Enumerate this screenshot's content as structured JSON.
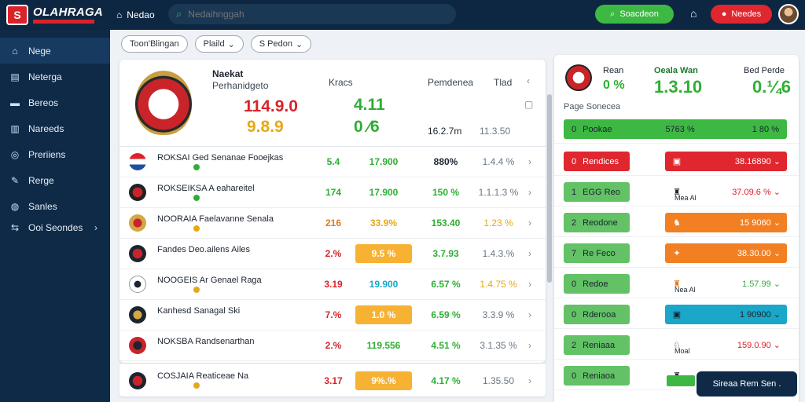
{
  "brand": {
    "name": "OLAHRAGA",
    "badge": "S"
  },
  "topnav": {
    "home_label": "Nedao"
  },
  "search": {
    "placeholder": "Nedaihnggah"
  },
  "actions": {
    "green_label": "Soacdeon",
    "red_label": "Needes"
  },
  "sidebar": {
    "items": [
      {
        "icon": "⌂",
        "label": "Nege"
      },
      {
        "icon": "▤",
        "label": "Neterga"
      },
      {
        "icon": "▬",
        "label": "Bereos"
      },
      {
        "icon": "▥",
        "label": "Nareeds"
      },
      {
        "icon": "◎",
        "label": "Preriiens"
      },
      {
        "icon": "✎",
        "label": "Rerge"
      },
      {
        "icon": "◍",
        "label": "Sanles"
      },
      {
        "icon": "⇆",
        "label": "Ooi Seondes"
      }
    ]
  },
  "filters": [
    "Toon'Blingan",
    "Plaild",
    "S Pedon"
  ],
  "hero": {
    "title": "Naekat",
    "subtitle": "Perhanidgeto",
    "score_red": "114.9.0",
    "score_yellow": "9.8.9",
    "col1_header": "Kracs",
    "col1_big": "4.11",
    "col1_small": "0 ⁄6",
    "col2_header": "Pemdenea",
    "col2_value": "16.2.7m",
    "col3_header": "Tlad",
    "col3_value": "11.3.50",
    "icon_chevron": "‹",
    "icon_square": "▢"
  },
  "rows": [
    {
      "name": "ROKSAI Ged Senanae Fooejkas",
      "c1": "5.4",
      "c1_color": "#2fae35",
      "c2": "17.900",
      "c2_bg": "transparent",
      "c2_color": "#2fae35",
      "c3": "880%",
      "c3_color": "#1c2430",
      "c4": "1.4.4 %"
    },
    {
      "name": "ROKSEIKSA A eahareitel",
      "c1": "174",
      "c1_color": "#2fae35",
      "c2": "17.900",
      "c2_bg": "transparent",
      "c2_color": "#2fae35",
      "c3": "150 %",
      "c3_color": "#2fae35",
      "c4": "1.1.1.3 %"
    },
    {
      "name": "NOORAIA Faelavanne Senala",
      "c1": "216",
      "c1_color": "#e07a1a",
      "c2": "33.9%",
      "c2_bg": "transparent",
      "c2_color": "#e6a817",
      "c3": "153.40",
      "c3_color": "#2fae35",
      "c4": "1.23 %"
    },
    {
      "name": "Fandes Deo.ailens Ailes",
      "c1": "2.%",
      "c1_color": "#d8232a",
      "c2": "9.5 %",
      "c2_bg": "#f7b233",
      "c2_color": "#fff",
      "c3": "3.7.93",
      "c3_color": "#2fae35",
      "c4": "1.4.3.%"
    },
    {
      "name": "NOOGEIS Ar Genael Raga",
      "c1": "3.19",
      "c1_color": "#d8232a",
      "c2": "19.900",
      "c2_bg": "transparent",
      "c2_color": "#1aa7c9",
      "c3": "6.57 %",
      "c3_color": "#2fae35",
      "c4": "1.4.75 %"
    },
    {
      "name": "Kanhesd Sanagal Ski",
      "c1": "7.%",
      "c1_color": "#d8232a",
      "c2": "1.0 %",
      "c2_bg": "#f7b233",
      "c2_color": "#fff",
      "c3": "6.59 %",
      "c3_color": "#2fae35",
      "c4": "3.3.9 %"
    },
    {
      "name": "NOKSBA Randsenarthan",
      "c1": "2.%",
      "c1_color": "#d8232a",
      "c2": "119.556",
      "c2_bg": "transparent",
      "c2_color": "#2fae35",
      "c3": "4.51 %",
      "c3_color": "#2fae35",
      "c4": "3.1.35 %"
    }
  ],
  "extra_row": {
    "name": "COSJAIA Reaticeae Na",
    "c1": "3.17",
    "c2": "9%.%",
    "c3": "4.17 %",
    "c4": "1.35.50"
  },
  "panel": {
    "h1": "Rean",
    "h1_val": "0 %",
    "h2": "Oeala Wan",
    "h2_val": "1.3.10",
    "h3": "Bed Perde",
    "h3_val": "0.¼6",
    "caption": "Page Sonecea",
    "rows": [
      {
        "l_label": "Pookae",
        "l_num": "0",
        "l_bg": "#3db843",
        "r_icon": "",
        "r_label": "5763 %",
        "r_val": "1 80 %",
        "r_bg": "#3db843"
      },
      {
        "l_label": "Rendices",
        "l_num": "0",
        "l_bg": "#e0262e",
        "r_icon": "▣",
        "r_label": "",
        "r_val": "38.16890 ⌄",
        "r_bg": "#e0262e"
      },
      {
        "l_label": "EGG Reo",
        "l_num": "1",
        "l_bg": "#62c265",
        "r_icon": "♜",
        "r_label": "Mea Al",
        "r_val": "37.09.6 % ⌄",
        "r_bg": "transparent"
      },
      {
        "l_label": "Reodone",
        "l_num": "2",
        "l_bg": "#62c265",
        "r_icon": "♞",
        "r_label": "",
        "r_val": "15 9060 ⌄",
        "r_bg": "#f28023"
      },
      {
        "l_label": "Re Feco",
        "l_num": "7",
        "l_bg": "#62c265",
        "r_icon": "✦",
        "r_label": "",
        "r_val": "38.30.00 ⌄",
        "r_bg": "#f28023"
      },
      {
        "l_label": "Redoe",
        "l_num": "0",
        "l_bg": "#62c265",
        "r_icon": "♜",
        "r_label": "Nea Al",
        "r_val": "1.57.99 ⌄",
        "r_bg": "transparent"
      },
      {
        "l_label": "Rderooa",
        "l_num": "0",
        "l_bg": "#62c265",
        "r_icon": "▣",
        "r_label": "",
        "r_val": "1 90900 ⌄",
        "r_bg": "#1aa7c9"
      },
      {
        "l_label": "Reniaaa",
        "l_num": "2",
        "l_bg": "#62c265",
        "r_icon": "♘",
        "r_label": "Moal",
        "r_val": "159.0.90 ⌄",
        "r_bg": "transparent"
      },
      {
        "l_label": "Reniaoa",
        "l_num": "0",
        "l_bg": "#62c265",
        "r_icon": "♜",
        "r_label": "",
        "r_val": "",
        "r_bg": "transparent"
      }
    ]
  },
  "toast": {
    "label": "Sireaa Rem Sen ."
  }
}
